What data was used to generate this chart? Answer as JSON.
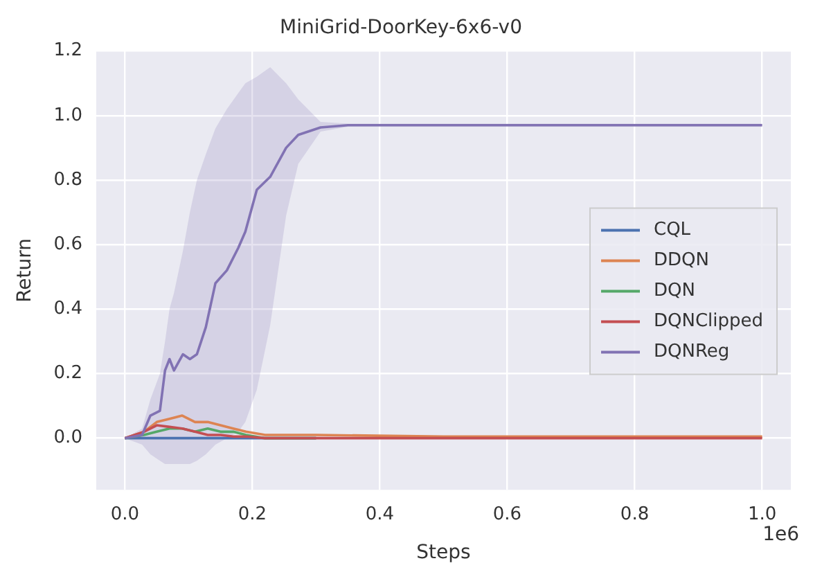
{
  "chart_data": {
    "type": "line",
    "title": "MiniGrid-DoorKey-6x6-v0",
    "xlabel": "Steps",
    "ylabel": "Return",
    "annotations": [
      "1e6"
    ],
    "xlim": [
      -0.045,
      1.045
    ],
    "xticks": [
      {
        "value": 0,
        "label": "0.0"
      },
      0.2,
      0.4,
      0.6,
      0.8,
      {
        "value": 1,
        "label": "1.0"
      }
    ],
    "ylim": [
      -0.16,
      1.2
    ],
    "yticks": [
      {
        "value": 0,
        "label": "0.0"
      },
      0.2,
      0.4,
      0.6,
      0.8,
      {
        "value": 1,
        "label": "1.0"
      },
      1.2
    ],
    "grid": true,
    "legend": "right",
    "marker": "none",
    "line_style": "solid",
    "series": [
      {
        "name": "CQL",
        "color": "#4c72b0",
        "x": [
          0,
          0.03,
          0.05,
          0.07,
          0.09,
          0.11,
          0.13,
          0.15,
          0.17,
          0.19,
          0.22,
          0.3
        ],
        "values": [
          0,
          0,
          0,
          0,
          0,
          0,
          0,
          0,
          0,
          0,
          0,
          0
        ]
      },
      {
        "name": "DDQN",
        "color": "#dd8452",
        "x": [
          0,
          0.03,
          0.05,
          0.07,
          0.09,
          0.11,
          0.13,
          0.15,
          0.17,
          0.19,
          0.22,
          0.3,
          0.5,
          0.7,
          0.9,
          1.0
        ],
        "values": [
          0,
          0.02,
          0.05,
          0.06,
          0.07,
          0.05,
          0.05,
          0.04,
          0.03,
          0.02,
          0.01,
          0.01,
          0.005,
          0.005,
          0.005,
          0.005
        ]
      },
      {
        "name": "DQN",
        "color": "#55a868",
        "x": [
          0,
          0.03,
          0.05,
          0.07,
          0.09,
          0.11,
          0.13,
          0.15,
          0.17,
          0.19,
          0.22,
          0.3
        ],
        "values": [
          0,
          0.01,
          0.02,
          0.03,
          0.03,
          0.02,
          0.03,
          0.02,
          0.02,
          0.01,
          0,
          0
        ]
      },
      {
        "name": "DQNClipped",
        "color": "#c44e52",
        "x": [
          0,
          0.03,
          0.05,
          0.07,
          0.09,
          0.11,
          0.13,
          0.15,
          0.17,
          0.19,
          0.22,
          0.3,
          0.5,
          0.7,
          0.9,
          1.0
        ],
        "values": [
          0,
          0.02,
          0.04,
          0.035,
          0.03,
          0.02,
          0.01,
          0.01,
          0.005,
          0.005,
          0,
          0,
          0,
          0,
          0,
          0
        ]
      },
      {
        "name": "DQNReg",
        "color": "#8172b3",
        "x": [
          0,
          0.027,
          0.04,
          0.055,
          0.063,
          0.07,
          0.077,
          0.091,
          0.102,
          0.113,
          0.127,
          0.142,
          0.16,
          0.178,
          0.189,
          0.207,
          0.228,
          0.253,
          0.272,
          0.307,
          0.35,
          0.5,
          0.7,
          0.9,
          1.0
        ],
        "values": [
          0,
          0.01,
          0.07,
          0.085,
          0.21,
          0.245,
          0.21,
          0.26,
          0.245,
          0.26,
          0.344,
          0.48,
          0.52,
          0.59,
          0.64,
          0.77,
          0.81,
          0.9,
          0.94,
          0.963,
          0.97,
          0.97,
          0.97,
          0.97,
          0.97
        ],
        "upper": [
          0,
          0.03,
          0.12,
          0.2,
          0.3,
          0.4,
          0.45,
          0.58,
          0.7,
          0.8,
          0.88,
          0.96,
          1.02,
          1.07,
          1.1,
          1.12,
          1.15,
          1.1,
          1.05,
          0.98,
          0.975,
          0.975,
          0.975,
          0.975,
          0.975
        ],
        "lower": [
          0,
          -0.02,
          -0.05,
          -0.07,
          -0.08,
          -0.08,
          -0.08,
          -0.08,
          -0.08,
          -0.07,
          -0.05,
          -0.02,
          0,
          0.02,
          0.05,
          0.15,
          0.35,
          0.69,
          0.85,
          0.95,
          0.965,
          0.965,
          0.965,
          0.965,
          0.965
        ]
      }
    ]
  }
}
